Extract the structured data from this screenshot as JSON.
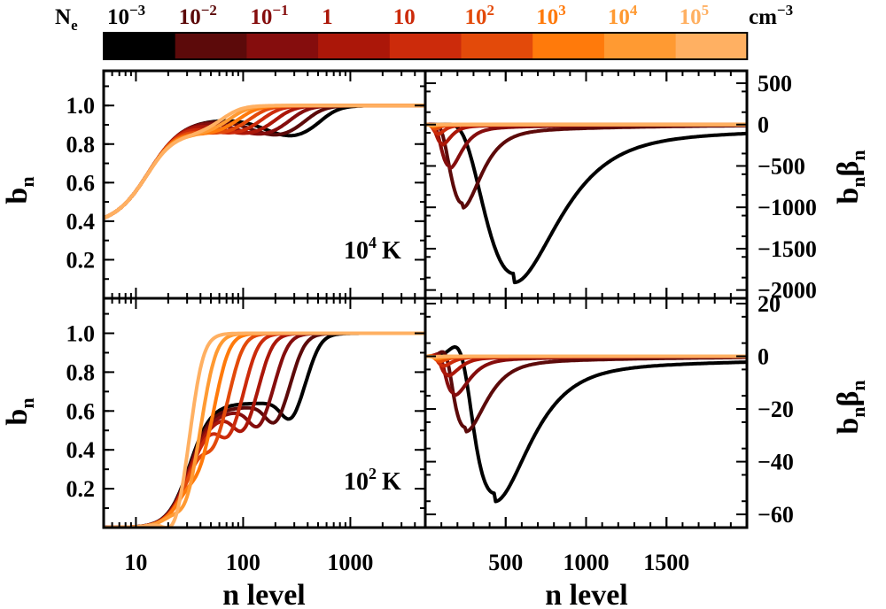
{
  "colorbar": {
    "label": "N",
    "label_sub": "e",
    "unit": "cm",
    "unit_exp": "−3",
    "levels": [
      {
        "base": "10",
        "exp": "−3",
        "color": "#000000"
      },
      {
        "base": "10",
        "exp": "−2",
        "color": "#5c0a0a"
      },
      {
        "base": "10",
        "exp": "−1",
        "color": "#850d0d"
      },
      {
        "base": "1",
        "exp": "",
        "color": "#ab1709"
      },
      {
        "base": "10",
        "exp": "",
        "color": "#cc2b0b"
      },
      {
        "base": "10",
        "exp": "2",
        "color": "#e34a0a"
      },
      {
        "base": "10",
        "exp": "3",
        "color": "#ff7a0b"
      },
      {
        "base": "10",
        "exp": "4",
        "color": "#ff9a32"
      },
      {
        "base": "10",
        "exp": "5",
        "color": "#ffb062"
      }
    ]
  },
  "chart_data": [
    {
      "id": "bn-1e4K",
      "type": "line",
      "ylabel": "b",
      "ylabel_sub": "n",
      "annotation": {
        "base": "10",
        "exp": "4",
        "unit": "K"
      },
      "xscale": "log",
      "xlim": [
        5,
        5000
      ],
      "ylim": [
        0.0,
        1.18
      ],
      "xticks": [
        10,
        100,
        1000
      ],
      "xticklabels": [],
      "yticks": [
        0.2,
        0.4,
        0.6,
        0.8,
        1.0
      ],
      "yticklabels": [
        "0.2",
        "0.4",
        "0.6",
        "0.8",
        "1.0"
      ],
      "shape": {
        "kind": "bn_hot",
        "start": 0.38,
        "dips": [
          290,
          210,
          150,
          110,
          82,
          63,
          50,
          41,
          35
        ]
      }
    },
    {
      "id": "bnbeta-1e4K",
      "type": "line",
      "ylabel": "b",
      "ylabel_sub": "n",
      "ylabel2": "β",
      "ylabel2_sub": "n",
      "xscale": "linear",
      "xlim": [
        0,
        2000
      ],
      "ylim": [
        -2100,
        650
      ],
      "xticks": [
        500,
        1000,
        1500
      ],
      "xticklabels": [],
      "yticks": [
        500,
        0,
        -500,
        -1000,
        -1500,
        -2000
      ],
      "yticklabels": [
        "500",
        "0",
        "−500",
        "−1000",
        "−1500",
        "−2000"
      ],
      "series_min": [
        -1800,
        -950,
        -500,
        -230,
        -110,
        -50,
        -20,
        -8,
        -3
      ],
      "series_nmin": [
        550,
        230,
        150,
        105,
        78,
        60,
        48,
        38,
        32
      ]
    },
    {
      "id": "bn-1e2K",
      "type": "line",
      "ylabel": "b",
      "ylabel_sub": "n",
      "annotation": {
        "base": "10",
        "exp": "2",
        "unit": "K"
      },
      "xlabel": "n level",
      "xscale": "log",
      "xlim": [
        5,
        5000
      ],
      "ylim": [
        0.0,
        1.18
      ],
      "xticks": [
        10,
        100,
        1000
      ],
      "xticklabels": [
        "10",
        "100",
        "1000"
      ],
      "yticks": [
        0.2,
        0.4,
        0.6,
        0.8,
        1.0
      ],
      "yticklabels": [
        "0.2",
        "0.4",
        "0.6",
        "0.8",
        "1.0"
      ],
      "shape": {
        "kind": "bn_cold",
        "rise": [
          420,
          300,
          210,
          150,
          110,
          80,
          60,
          46,
          35
        ]
      }
    },
    {
      "id": "bnbeta-1e2K",
      "type": "line",
      "ylabel": "b",
      "ylabel_sub": "n",
      "ylabel2": "β",
      "ylabel2_sub": "n",
      "xlabel": "n level",
      "xscale": "linear",
      "xlim": [
        0,
        2000
      ],
      "ylim": [
        -65,
        22
      ],
      "xticks": [
        500,
        1000,
        1500
      ],
      "xticklabels": [
        "500",
        "1000",
        "1500"
      ],
      "yticks": [
        20,
        0,
        -20,
        -40,
        -60
      ],
      "yticklabels": [
        "20",
        "0",
        "−20",
        "−40",
        "−60"
      ],
      "series_min": [
        -52,
        -27,
        -14,
        -7,
        -3.5,
        -1.8,
        -0.9,
        -0.4,
        -0.2
      ],
      "series_nmin": [
        430,
        250,
        180,
        140,
        110,
        88,
        72,
        60,
        50
      ],
      "series_peak": [
        6,
        3,
        1.5,
        0.8,
        0.4,
        0.2,
        0.1,
        0.05,
        0.02
      ]
    }
  ]
}
